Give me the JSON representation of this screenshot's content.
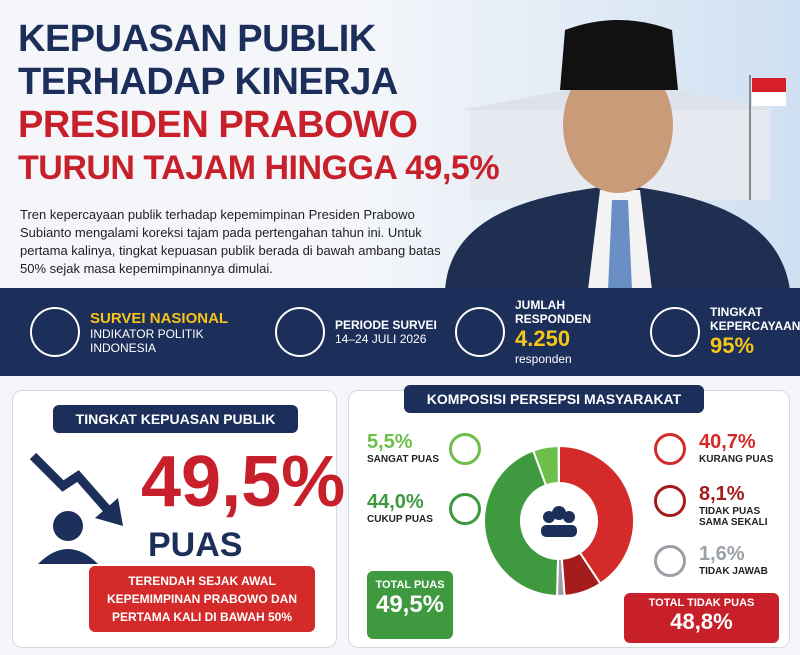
{
  "header": {
    "title_lines": [
      "KEPUASAN PUBLIK",
      "TERHADAP KINERJA",
      "PRESIDEN PRABOWO",
      "TURUN TAJAM HINGGA 49,5%"
    ],
    "description": "Tren kepercayaan publik terhadap kepemimpinan Presiden Prabowo Subianto mengalami koreksi tajam pada pertengahan tahun ini. Untuk pertama kalinya, tingkat kepuasan publik berada di bawah ambang batas 50% sejak masa kepemimpinannya dimulai."
  },
  "stats": [
    {
      "title": "SURVEI NASIONAL",
      "subtitle": "INDIKATOR POLITIK INDONESIA"
    },
    {
      "title": "PERIODE SURVEI",
      "subtitle": "14–24 JULI 2026"
    },
    {
      "title": "JUMLAH RESPONDEN",
      "value": "4.250",
      "subtitle": "responden"
    },
    {
      "title": "TINGKAT KEPERCAYAAN",
      "value": "95%"
    }
  ],
  "satisfaction": {
    "heading": "TINGKAT KEPUASAN PUBLIK",
    "value": "49,5%",
    "unit": "PUAS",
    "note": "TERENDAH SEJAK AWAL KEPEMIMPINAN PRABOWO DAN PERTAMA KALI DI BAWAH 50%"
  },
  "composition": {
    "heading": "KOMPOSISI PERSEPSI MASYARAKAT",
    "segments": [
      {
        "name": "KURANG PUAS",
        "value": 40.7,
        "label": "40,7%",
        "color": "#d42a2a"
      },
      {
        "name": "TIDAK PUAS SAMA SEKALI",
        "value": 8.1,
        "label": "8,1%",
        "color": "#a51c1c"
      },
      {
        "name": "TIDAK JAWAB",
        "value": 1.6,
        "label": "1,6%",
        "color": "#9aa0a6"
      },
      {
        "name": "CUKUP PUAS",
        "value": 44.0,
        "label": "44,0%",
        "color": "#3f9a3f"
      },
      {
        "name": "SANGAT PUAS",
        "value": 5.5,
        "label": "5,5%",
        "color": "#6cc04a"
      }
    ],
    "total_satisfied": {
      "label": "TOTAL PUAS",
      "value": "49,5%"
    },
    "total_dissatisfied": {
      "label": "TOTAL TIDAK PUAS",
      "value": "48,8%"
    }
  }
}
